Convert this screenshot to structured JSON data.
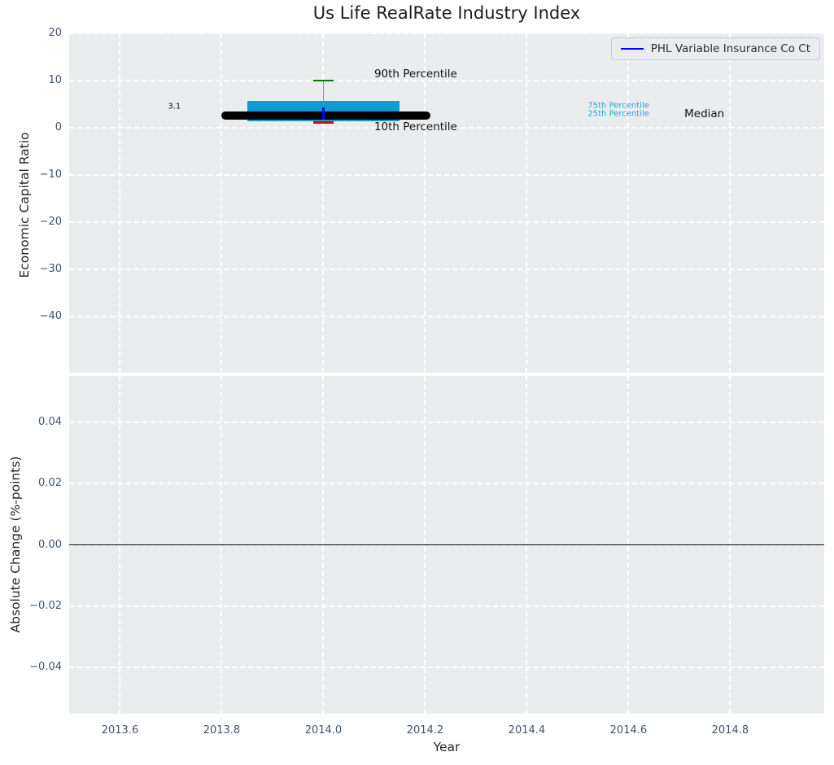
{
  "title": "Us Life RealRate Industry Index",
  "xlabel": "Year",
  "legend": {
    "position": "upper right",
    "entries": [
      {
        "label": "PHL Variable Insurance Co Ct",
        "color": "#0000ff"
      }
    ]
  },
  "colors": {
    "plot_background": "#e9edee",
    "grid": "#ffffff",
    "tick_labels": "#42536b",
    "box_fill": "#0f9bd4",
    "median_line": "#000000",
    "p90_cap": "#077d07",
    "p10_cap": "#e8000b",
    "whisker": "#8a8a8a",
    "company_marker": "#0000f0",
    "percentile_label_cyan": "#29a6d8",
    "zero_line": "#000000"
  },
  "chart_data": [
    {
      "type": "boxplot+scatter",
      "title": "Us Life RealRate Industry Index",
      "ylabel": "Economic Capital Ratio",
      "xlim": [
        2013.5,
        2014.985
      ],
      "ylim": [
        -51.9,
        20
      ],
      "xticks": [
        2013.6,
        2013.8,
        2014.0,
        2014.2,
        2014.4,
        2014.6,
        2014.8
      ],
      "xticklabels": [
        "2013.6",
        "2013.8",
        "2014.0",
        "2014.2",
        "2014.4",
        "2014.6",
        "2014.8"
      ],
      "yticks": [
        20,
        10,
        0,
        -10,
        -20,
        -30,
        -40
      ],
      "yticklabels": [
        "20",
        "10",
        "0",
        "−10",
        "−20",
        "−30",
        "−40"
      ],
      "grid": "white dashed on light gray",
      "legend_entries": [
        "PHL Variable Insurance Co Ct"
      ],
      "boxplot": {
        "x": 2014.0,
        "p90": 10.0,
        "p75": 5.7,
        "median": 2.6,
        "p25": 1.4,
        "p10": 1.1,
        "box_x_span": [
          2013.85,
          2014.15
        ],
        "median_x_span": [
          2013.8,
          2014.21
        ],
        "cap_halfwidth_years": 0.02
      },
      "series": [
        {
          "name": "PHL Variable Insurance Co Ct",
          "x": [
            2014.0
          ],
          "y": [
            3.1
          ],
          "marker": "|"
        }
      ],
      "annotations": [
        {
          "text": "3.1",
          "x": 2013.707,
          "y": 4.4,
          "size": 10,
          "color": "#111111",
          "anchor": "middle"
        },
        {
          "text": "90th Percentile",
          "x": 2014.1,
          "y": 11.3,
          "size": 13.5,
          "color": "#111111",
          "anchor": "start"
        },
        {
          "text": "10th Percentile",
          "x": 2014.1,
          "y": 0.1,
          "size": 13.5,
          "color": "#111111",
          "anchor": "start"
        },
        {
          "text": "75th Percentile",
          "x": 2014.52,
          "y": 4.7,
          "size": 10,
          "color": "#29a6d8",
          "anchor": "start"
        },
        {
          "text": "25th Percentile",
          "x": 2014.52,
          "y": 3.0,
          "size": 10,
          "color": "#29a6d8",
          "anchor": "start"
        },
        {
          "text": "Median",
          "x": 2014.71,
          "y": 2.9,
          "size": 13.5,
          "color": "#111111",
          "anchor": "start"
        }
      ]
    },
    {
      "type": "line",
      "ylabel": "Absolute Change (%-points)",
      "xlabel": "Year",
      "xlim": [
        2013.5,
        2014.985
      ],
      "ylim": [
        -0.055,
        0.055
      ],
      "xticks": [
        2013.6,
        2013.8,
        2014.0,
        2014.2,
        2014.4,
        2014.6,
        2014.8
      ],
      "xticklabels": [
        "2013.6",
        "2013.8",
        "2014.0",
        "2014.2",
        "2014.4",
        "2014.6",
        "2014.8"
      ],
      "yticks": [
        0.04,
        0.02,
        0.0,
        -0.02,
        -0.04
      ],
      "yticklabels": [
        "0.04",
        "0.02",
        "0.00",
        "−0.02",
        "−0.04"
      ],
      "grid": "white dashed on light gray",
      "zero_line": 0.0,
      "series": []
    }
  ]
}
